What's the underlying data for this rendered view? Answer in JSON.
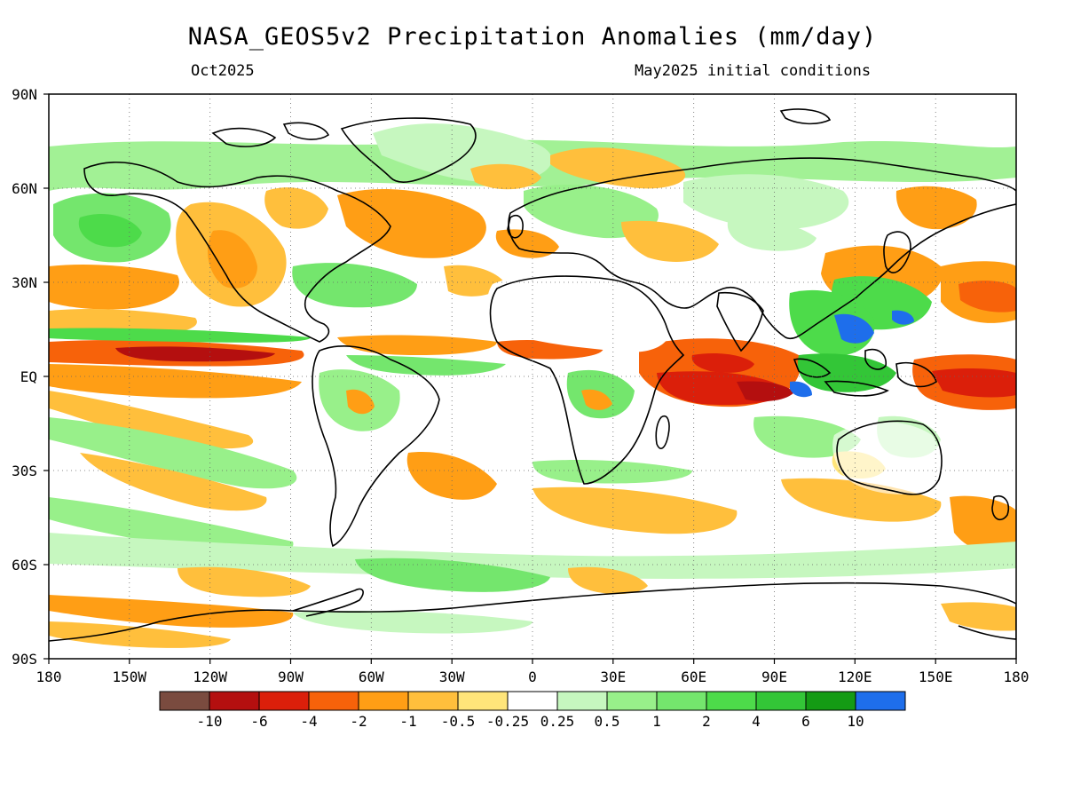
{
  "header": {
    "title": "NASA_GEOS5v2 Precipitation Anomalies (mm/day)",
    "valid_month": "Oct2025",
    "init_conditions": "May2025 initial conditions"
  },
  "map": {
    "projection": "cylindrical equidistant",
    "lon_ticks": [
      "180",
      "150W",
      "120W",
      "90W",
      "60W",
      "30W",
      "0",
      "30E",
      "60E",
      "90E",
      "120E",
      "150E",
      "180"
    ],
    "lat_ticks": [
      "90N",
      "60N",
      "30N",
      "EQ",
      "30S",
      "60S",
      "90S"
    ],
    "grid": "dotted"
  },
  "colorbar": {
    "colors": [
      "#7a4b3f",
      "#b40f0f",
      "#db1f0a",
      "#f7620a",
      "#ff9e15",
      "#ffbf3c",
      "#ffe57a",
      "#ffffff",
      "#c6f7bf",
      "#98f08a",
      "#74e66d",
      "#4ddb4a",
      "#33c637",
      "#149b14",
      "#1e6eeb"
    ],
    "labels": [
      "-10",
      "-6",
      "-4",
      "-2",
      "-1",
      "-0.5",
      "-0.25",
      "0.25",
      "0.5",
      "1",
      "2",
      "4",
      "6",
      "10"
    ]
  }
}
